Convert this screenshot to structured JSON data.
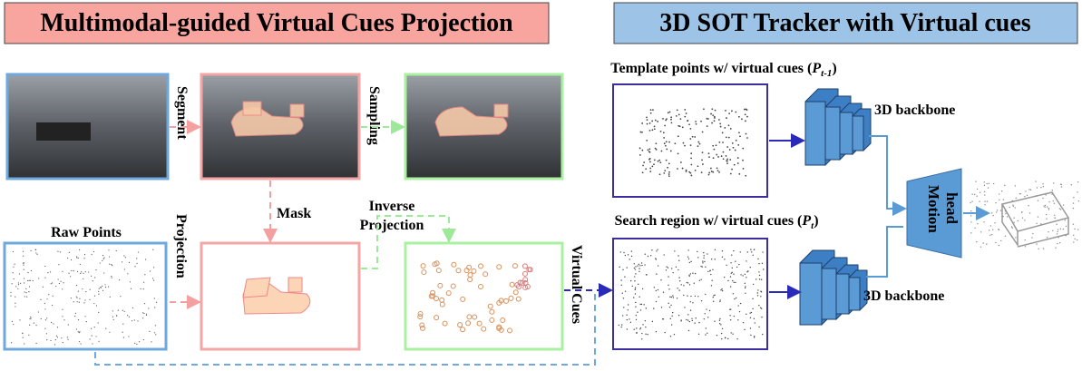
{
  "header": {
    "left_title": "Multimodal-guided Virtual Cues Projection",
    "right_title": "3D SOT Tracker with Virtual cues"
  },
  "pipeline": {
    "segment": "Segment",
    "sampling": "Sampling",
    "mask": "Mask",
    "inverse_projection": {
      "lines": [
        "Inverse",
        "Projection"
      ]
    },
    "raw_points": "Raw Points",
    "projection": "Projection",
    "virtual_cues": "Virtual Cues"
  },
  "tracker": {
    "template_label": {
      "prefix": "Template points w/ virtual cues (",
      "symbol": "P",
      "subscript": "t-1",
      "suffix": ")"
    },
    "search_label": {
      "prefix": "Search region w/  virtual cues (",
      "symbol": "P",
      "subscript": "t",
      "suffix": ")"
    },
    "backbone_top": "3D backbone",
    "backbone_bottom": "3D backbone",
    "motion_head": {
      "lines": [
        "Motion",
        "head"
      ]
    }
  }
}
